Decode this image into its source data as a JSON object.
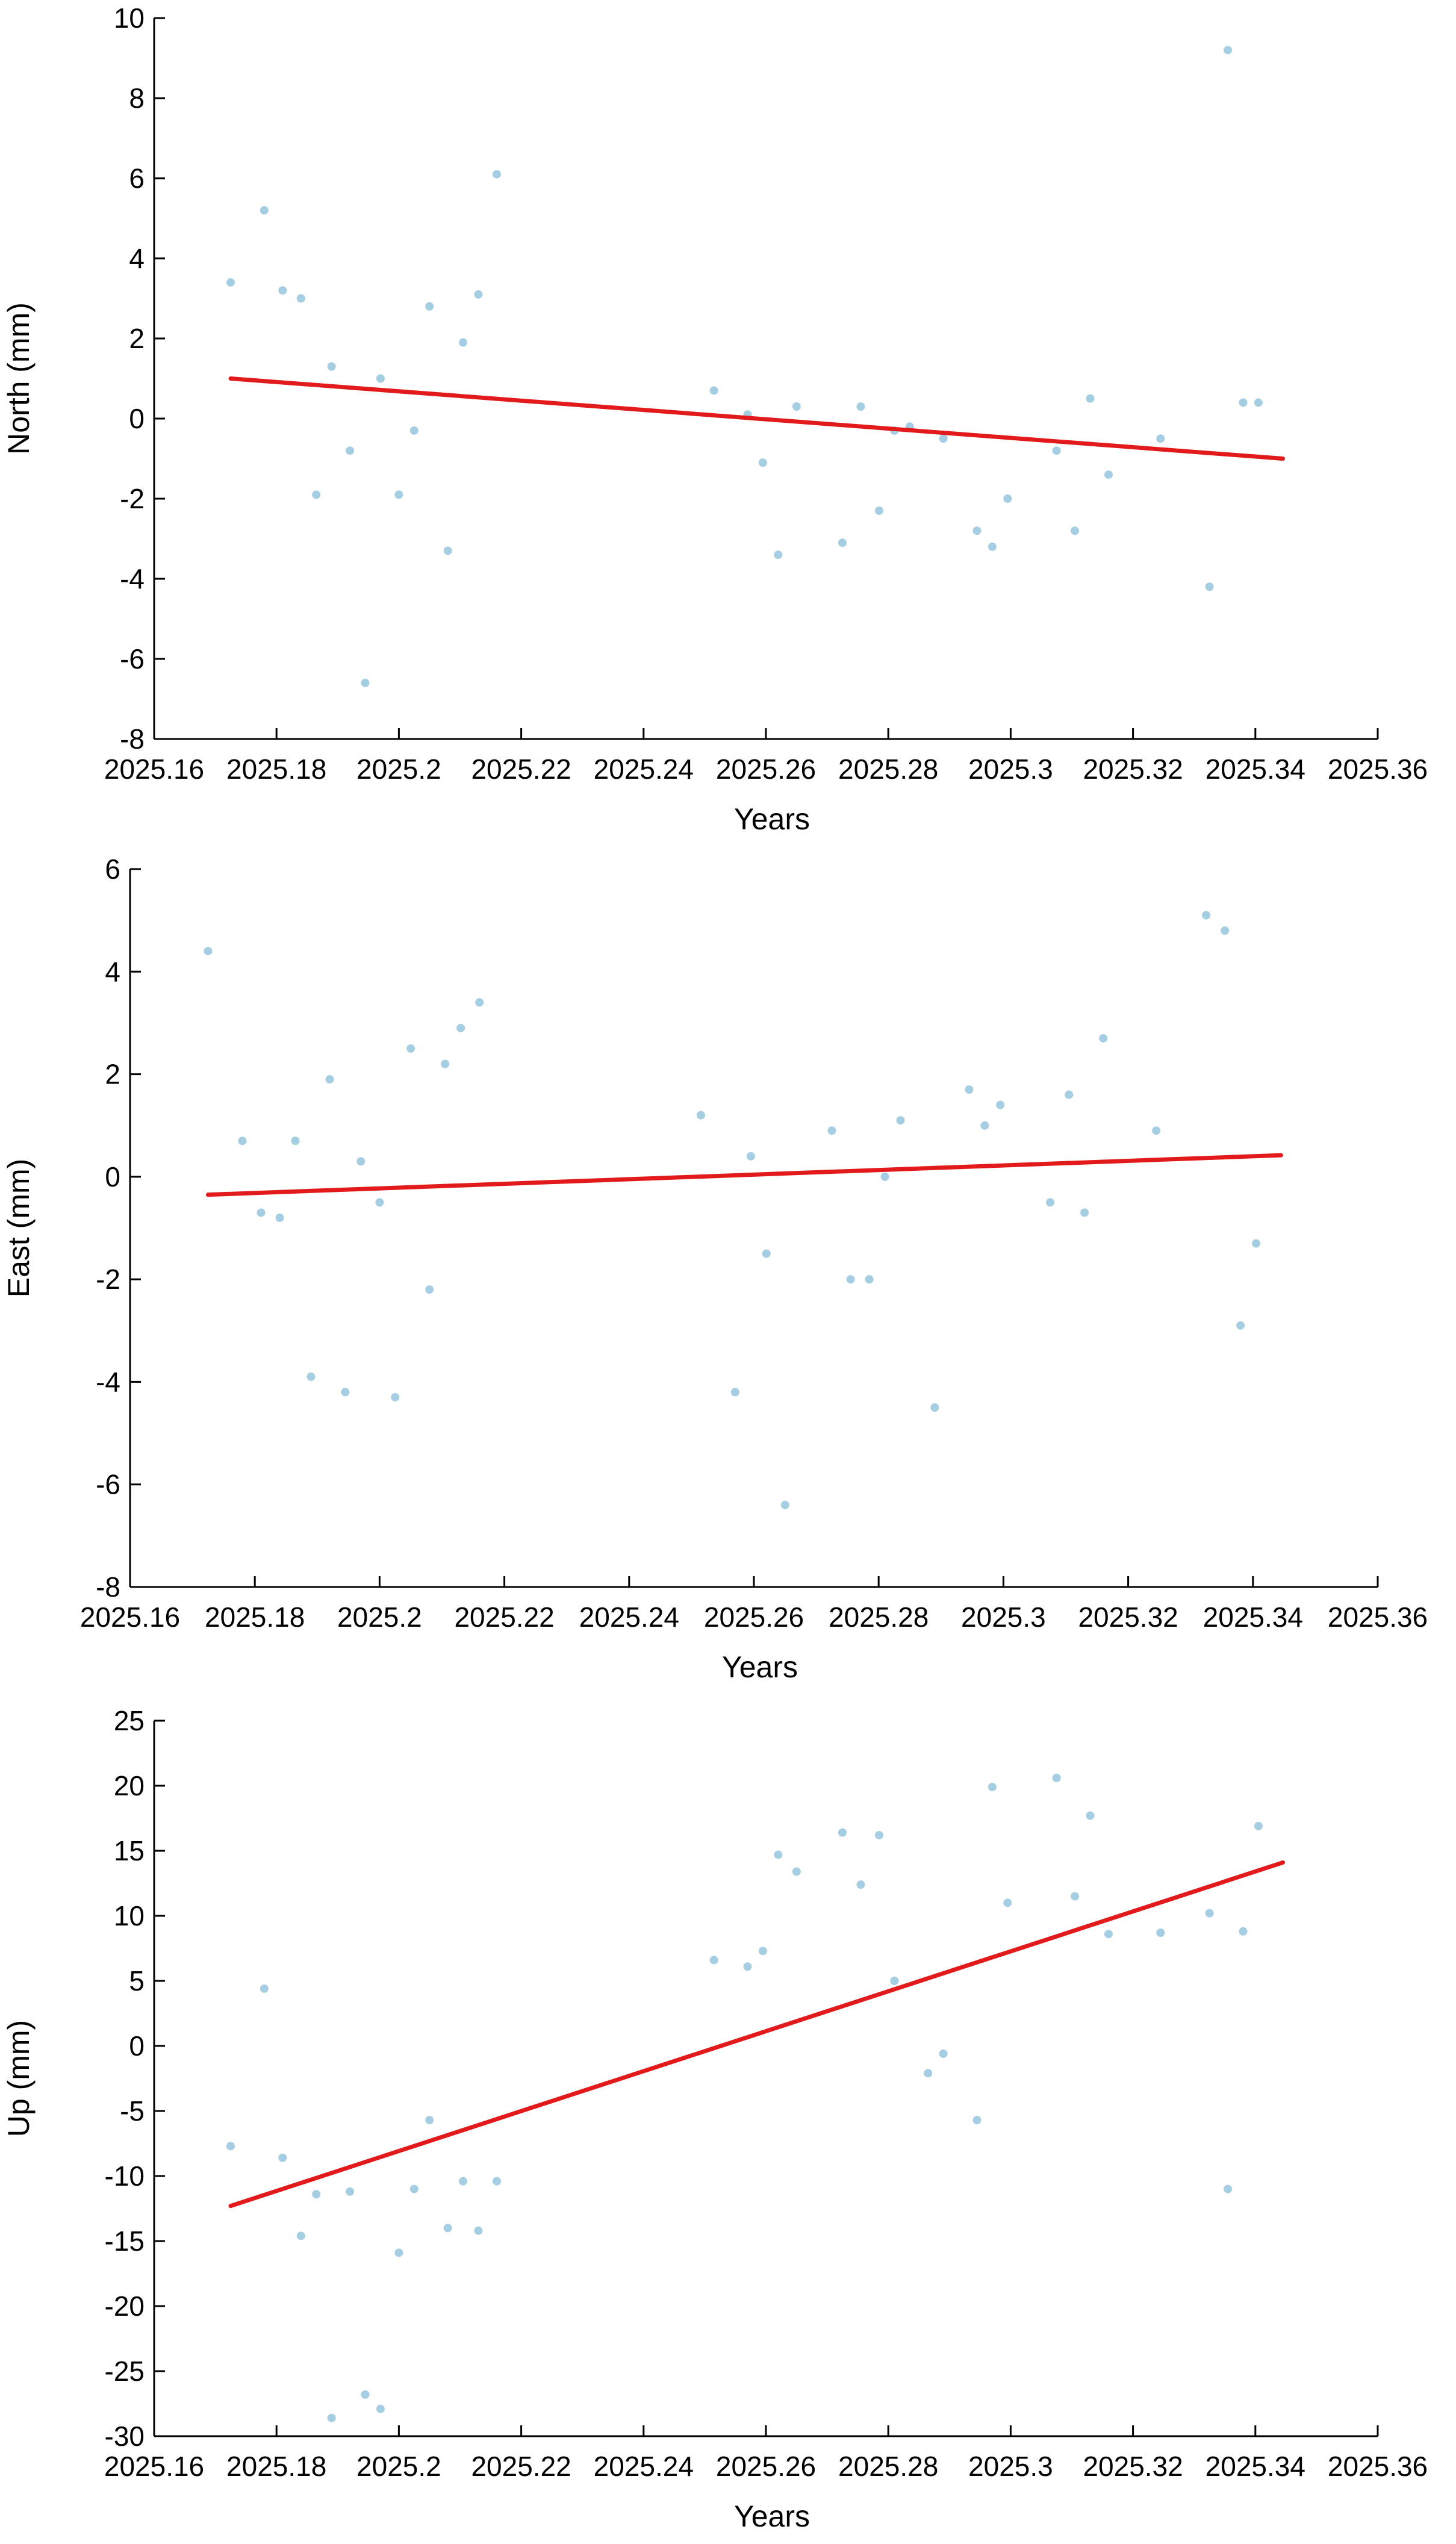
{
  "chart_data": [
    {
      "type": "scatter",
      "xlabel": "Years",
      "ylabel": "North (mm)",
      "xlim": [
        2025.16,
        2025.36
      ],
      "ylim": [
        -8,
        10
      ],
      "xticks": [
        "2025.16",
        "2025.18",
        "2025.2",
        "2025.22",
        "2025.24",
        "2025.26",
        "2025.28",
        "2025.3",
        "2025.32",
        "2025.34",
        "2025.36"
      ],
      "yticks": [
        "-8",
        "-6",
        "-4",
        "-2",
        "0",
        "2",
        "4",
        "6",
        "8",
        "10"
      ],
      "grid": false,
      "point_color": "#a6cee3",
      "trend_color": "#e31a1c",
      "trend": {
        "x": [
          2025.1725,
          2025.3445
        ],
        "y": [
          1.0,
          -1.0
        ]
      },
      "points": {
        "x": [
          2025.1725,
          2025.178,
          2025.181,
          2025.184,
          2025.1865,
          2025.189,
          2025.192,
          2025.1945,
          2025.197,
          2025.2,
          2025.2025,
          2025.205,
          2025.208,
          2025.2105,
          2025.213,
          2025.216,
          2025.2515,
          2025.257,
          2025.2595,
          2025.262,
          2025.265,
          2025.2725,
          2025.2755,
          2025.2785,
          2025.281,
          2025.2835,
          2025.289,
          2025.2945,
          2025.297,
          2025.2995,
          2025.3075,
          2025.3105,
          2025.313,
          2025.316,
          2025.3245,
          2025.3325,
          2025.3355,
          2025.338,
          2025.3405
        ],
        "y": [
          3.4,
          5.2,
          3.2,
          3.0,
          -1.9,
          1.3,
          -0.8,
          -6.6,
          1.0,
          -1.9,
          -0.3,
          2.8,
          -3.3,
          1.9,
          3.1,
          6.1,
          0.7,
          0.1,
          -1.1,
          -3.4,
          0.3,
          -3.1,
          0.3,
          -2.3,
          -0.3,
          -0.2,
          -0.5,
          -2.8,
          -3.2,
          -2.0,
          -0.8,
          -2.8,
          0.5,
          -1.4,
          -0.5,
          -4.2,
          9.2,
          0.4,
          0.4
        ]
      }
    },
    {
      "type": "scatter",
      "xlabel": "Years",
      "ylabel": "East (mm)",
      "xlim": [
        2025.16,
        2025.36
      ],
      "ylim": [
        -8,
        6
      ],
      "xticks": [
        "2025.16",
        "2025.18",
        "2025.2",
        "2025.22",
        "2025.24",
        "2025.26",
        "2025.28",
        "2025.3",
        "2025.32",
        "2025.34",
        "2025.36"
      ],
      "yticks": [
        "-8",
        "-6",
        "-4",
        "-2",
        "0",
        "2",
        "4",
        "6"
      ],
      "grid": false,
      "point_color": "#a6cee3",
      "trend_color": "#e31a1c",
      "trend": {
        "x": [
          2025.1725,
          2025.3445
        ],
        "y": [
          -0.35,
          0.42
        ]
      },
      "points": {
        "x": [
          2025.1725,
          2025.178,
          2025.181,
          2025.184,
          2025.1865,
          2025.189,
          2025.192,
          2025.1945,
          2025.197,
          2025.2,
          2025.2025,
          2025.205,
          2025.208,
          2025.2105,
          2025.213,
          2025.216,
          2025.2515,
          2025.257,
          2025.2595,
          2025.262,
          2025.265,
          2025.2725,
          2025.2755,
          2025.2785,
          2025.281,
          2025.2835,
          2025.289,
          2025.2945,
          2025.297,
          2025.2995,
          2025.3075,
          2025.3105,
          2025.313,
          2025.316,
          2025.3245,
          2025.3325,
          2025.3355,
          2025.338,
          2025.3405
        ],
        "y": [
          4.4,
          0.7,
          -0.7,
          -0.8,
          0.7,
          -3.9,
          1.9,
          -4.2,
          0.3,
          -0.5,
          -4.3,
          2.5,
          -2.2,
          2.2,
          2.9,
          3.4,
          1.2,
          -4.2,
          0.4,
          -1.5,
          -6.4,
          0.9,
          -2.0,
          -2.0,
          0.0,
          1.1,
          -4.5,
          1.7,
          1.0,
          1.4,
          -0.5,
          1.6,
          -0.7,
          2.7,
          0.9,
          5.1,
          4.8,
          -2.9,
          -1.3
        ]
      }
    },
    {
      "type": "scatter",
      "xlabel": "Years",
      "ylabel": "Up (mm)",
      "xlim": [
        2025.16,
        2025.36
      ],
      "ylim": [
        -30,
        25
      ],
      "xticks": [
        "2025.16",
        "2025.18",
        "2025.2",
        "2025.22",
        "2025.24",
        "2025.26",
        "2025.28",
        "2025.3",
        "2025.32",
        "2025.34",
        "2025.36"
      ],
      "yticks": [
        "-30",
        "-25",
        "-20",
        "-15",
        "-10",
        "-5",
        "0",
        "5",
        "10",
        "15",
        "20",
        "25"
      ],
      "grid": false,
      "point_color": "#a6cee3",
      "trend_color": "#e31a1c",
      "trend": {
        "x": [
          2025.1725,
          2025.3445
        ],
        "y": [
          -12.3,
          14.1
        ]
      },
      "points": {
        "x": [
          2025.1725,
          2025.178,
          2025.181,
          2025.184,
          2025.1865,
          2025.189,
          2025.192,
          2025.1945,
          2025.197,
          2025.2,
          2025.2025,
          2025.205,
          2025.208,
          2025.2105,
          2025.213,
          2025.216,
          2025.2515,
          2025.257,
          2025.2595,
          2025.262,
          2025.265,
          2025.2725,
          2025.2755,
          2025.2785,
          2025.281,
          2025.2865,
          2025.289,
          2025.2945,
          2025.297,
          2025.2995,
          2025.3075,
          2025.3105,
          2025.313,
          2025.316,
          2025.3245,
          2025.3325,
          2025.3355,
          2025.338,
          2025.3405
        ],
        "y": [
          -7.7,
          4.4,
          -8.6,
          -14.6,
          -11.4,
          -28.6,
          -11.2,
          -26.8,
          -27.9,
          -15.9,
          -11.0,
          -5.7,
          -14.0,
          -10.4,
          -14.2,
          -10.4,
          6.6,
          6.1,
          7.3,
          14.7,
          13.4,
          16.4,
          12.4,
          16.2,
          5.0,
          -2.1,
          -0.6,
          -5.7,
          19.9,
          11.0,
          20.6,
          11.5,
          17.7,
          8.6,
          8.7,
          10.2,
          -11.0,
          8.8,
          16.9
        ]
      }
    }
  ]
}
